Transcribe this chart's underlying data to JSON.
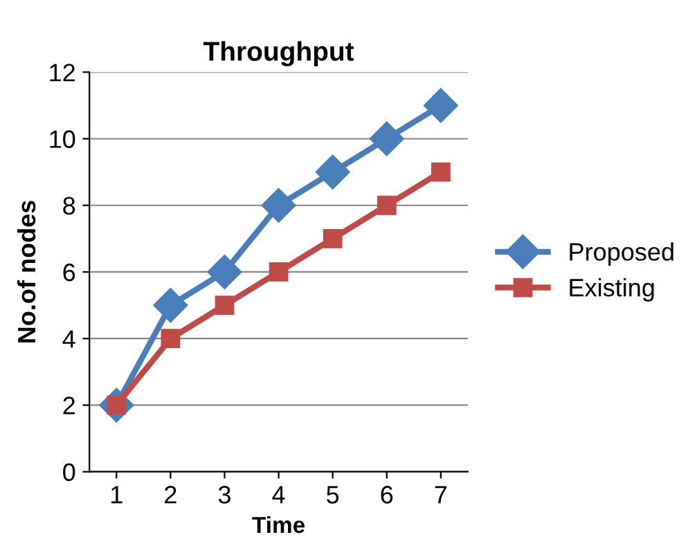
{
  "chart_data": {
    "type": "line",
    "title": "Throughput",
    "xlabel": "Time",
    "ylabel": "No.of nodes",
    "categories": [
      "1",
      "2",
      "3",
      "4",
      "5",
      "6",
      "7"
    ],
    "series": [
      {
        "name": "Proposed",
        "color": "#4a7ebb",
        "marker": "diamond",
        "values": [
          2,
          5,
          6,
          8,
          9,
          10,
          11
        ]
      },
      {
        "name": "Existing",
        "color": "#be4b48",
        "marker": "square",
        "values": [
          2,
          4,
          5,
          6,
          7,
          8,
          9
        ]
      }
    ],
    "ylim": [
      0,
      12
    ],
    "yticks": [
      0,
      2,
      4,
      6,
      8,
      10,
      12
    ],
    "grid": "y",
    "legend": "right",
    "line_style": "solid"
  }
}
